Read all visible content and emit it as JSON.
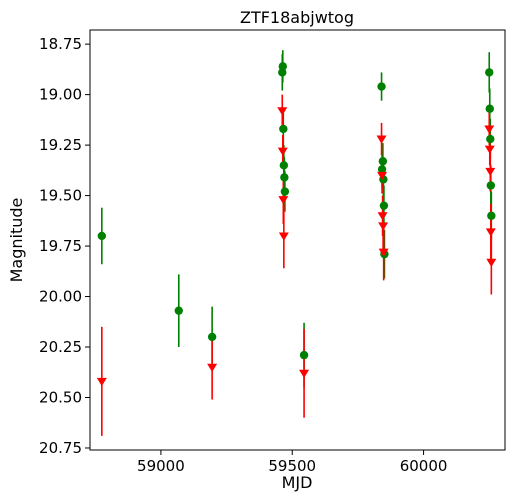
{
  "chart_data": {
    "type": "scatter",
    "title": "ZTF18abjwtog",
    "xlabel": "MJD",
    "ylabel": "Magnitude",
    "xlim": [
      58730,
      60310
    ],
    "ylim": [
      20.76,
      18.68
    ],
    "y_inverted": true,
    "xticks": [
      59000,
      59500,
      60000
    ],
    "yticks": [
      18.75,
      19.0,
      19.25,
      19.5,
      19.75,
      20.0,
      20.25,
      20.5,
      20.75
    ],
    "xtick_labels": [
      "59000",
      "59500",
      "60000"
    ],
    "ytick_labels": [
      "18.75",
      "19.00",
      "19.25",
      "19.50",
      "19.75",
      "20.00",
      "20.25",
      "20.50",
      "20.75"
    ],
    "grid": false,
    "series": [
      {
        "marker": "circle",
        "color": "#008000",
        "points": [
          {
            "x": 58775,
            "y": 19.7,
            "err": 0.14
          },
          {
            "x": 59068,
            "y": 20.07,
            "err": 0.18
          },
          {
            "x": 59195,
            "y": 20.2,
            "err": 0.15
          },
          {
            "x": 59462,
            "y": 18.89,
            "err": 0.09
          },
          {
            "x": 59464,
            "y": 18.86,
            "err": 0.08
          },
          {
            "x": 59466,
            "y": 19.17,
            "err": 0.1
          },
          {
            "x": 59468,
            "y": 19.35,
            "err": 0.1
          },
          {
            "x": 59470,
            "y": 19.41,
            "err": 0.1
          },
          {
            "x": 59472,
            "y": 19.48,
            "err": 0.1
          },
          {
            "x": 59545,
            "y": 20.29,
            "err": 0.16
          },
          {
            "x": 59840,
            "y": 18.96,
            "err": 0.07
          },
          {
            "x": 59842,
            "y": 19.37,
            "err": 0.09
          },
          {
            "x": 59845,
            "y": 19.33,
            "err": 0.09
          },
          {
            "x": 59847,
            "y": 19.42,
            "err": 0.09
          },
          {
            "x": 59849,
            "y": 19.55,
            "err": 0.1
          },
          {
            "x": 59851,
            "y": 19.79,
            "err": 0.12
          },
          {
            "x": 60250,
            "y": 18.89,
            "err": 0.1
          },
          {
            "x": 60252,
            "y": 19.07,
            "err": 0.1
          },
          {
            "x": 60254,
            "y": 19.22,
            "err": 0.1
          },
          {
            "x": 60256,
            "y": 19.45,
            "err": 0.1
          },
          {
            "x": 60258,
            "y": 19.6,
            "err": 0.12
          }
        ]
      },
      {
        "marker": "triangle-down",
        "color": "#ff0000",
        "points": [
          {
            "x": 58775,
            "y": 20.42,
            "err": 0.27
          },
          {
            "x": 59195,
            "y": 20.35,
            "err": 0.16
          },
          {
            "x": 59462,
            "y": 19.08,
            "err": 0.08
          },
          {
            "x": 59464,
            "y": 19.28,
            "err": 0.08
          },
          {
            "x": 59466,
            "y": 19.52,
            "err": 0.12
          },
          {
            "x": 59468,
            "y": 19.7,
            "err": 0.16
          },
          {
            "x": 59545,
            "y": 20.38,
            "err": 0.22
          },
          {
            "x": 59840,
            "y": 19.22,
            "err": 0.08
          },
          {
            "x": 59842,
            "y": 19.4,
            "err": 0.09
          },
          {
            "x": 59844,
            "y": 19.6,
            "err": 0.1
          },
          {
            "x": 59846,
            "y": 19.65,
            "err": 0.12
          },
          {
            "x": 59848,
            "y": 19.78,
            "err": 0.14
          },
          {
            "x": 60250,
            "y": 19.17,
            "err": 0.08
          },
          {
            "x": 60252,
            "y": 19.27,
            "err": 0.08
          },
          {
            "x": 60254,
            "y": 19.38,
            "err": 0.1
          },
          {
            "x": 60256,
            "y": 19.68,
            "err": 0.14
          },
          {
            "x": 60258,
            "y": 19.83,
            "err": 0.16
          }
        ]
      }
    ]
  }
}
